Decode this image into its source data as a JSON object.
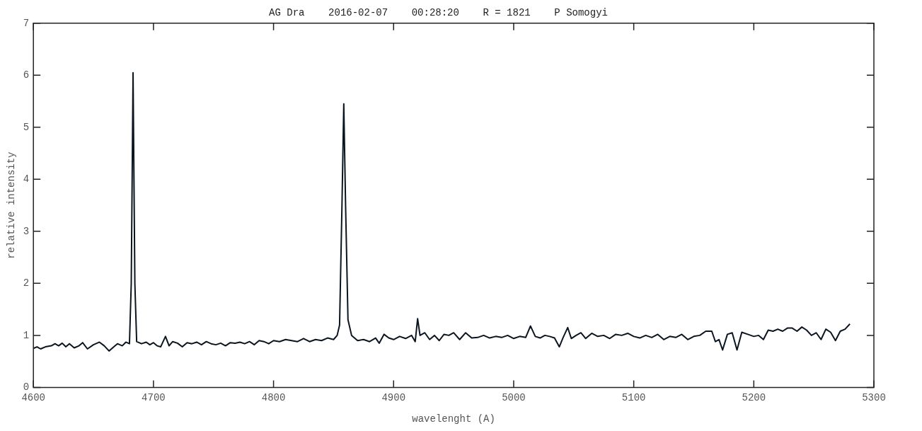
{
  "chart_data": {
    "type": "line",
    "title": "AG Dra    2016-02-07    00:28:20    R = 1821    P Somogyi",
    "xlabel": "wavelenght (A)",
    "ylabel": "relative intensity",
    "xlim": [
      4600,
      5300
    ],
    "xticks": [
      4600,
      4700,
      4800,
      4900,
      5000,
      5100,
      5200,
      5300
    ],
    "ylim": [
      0,
      7
    ],
    "yticks": [
      0,
      1,
      2,
      3,
      4,
      5,
      6,
      7
    ],
    "grid": false,
    "legend": false,
    "marker": "none",
    "line_style": "solid",
    "series": [
      {
        "color": "#0b1520",
        "x": [
          4600,
          4603,
          4606,
          4610,
          4615,
          4618,
          4621,
          4624,
          4627,
          4630,
          4634,
          4638,
          4641,
          4645,
          4650,
          4655,
          4659,
          4663,
          4667,
          4670,
          4674,
          4677,
          4680,
          4681.5,
          4683,
          4684.5,
          4686,
          4690,
          4694,
          4697,
          4700,
          4703,
          4706,
          4710,
          4713,
          4716,
          4720,
          4724,
          4728,
          4732,
          4736,
          4740,
          4744,
          4748,
          4752,
          4756,
          4760,
          4764,
          4768,
          4772,
          4776,
          4780,
          4784,
          4788,
          4792,
          4796,
          4800,
          4805,
          4810,
          4815,
          4820,
          4825,
          4830,
          4835,
          4840,
          4845,
          4850,
          4853,
          4855,
          4857,
          4858.5,
          4860,
          4862,
          4865,
          4870,
          4875,
          4880,
          4885,
          4888,
          4892,
          4896,
          4900,
          4905,
          4910,
          4915,
          4918,
          4920,
          4922,
          4926,
          4930,
          4934,
          4938,
          4942,
          4946,
          4950,
          4955,
          4960,
          4965,
          4970,
          4975,
          4980,
          4985,
          4990,
          4995,
          5000,
          5005,
          5010,
          5014,
          5018,
          5022,
          5026,
          5030,
          5034,
          5038,
          5041,
          5045,
          5048,
          5052,
          5056,
          5060,
          5065,
          5070,
          5075,
          5080,
          5085,
          5090,
          5095,
          5100,
          5105,
          5110,
          5115,
          5120,
          5125,
          5130,
          5135,
          5140,
          5145,
          5150,
          5155,
          5160,
          5165,
          5168,
          5171,
          5174,
          5178,
          5182,
          5186,
          5190,
          5195,
          5200,
          5204,
          5208,
          5212,
          5216,
          5220,
          5224,
          5228,
          5232,
          5236,
          5240,
          5244,
          5248,
          5252,
          5256,
          5260,
          5264,
          5268,
          5272,
          5276,
          5280
        ],
        "values": [
          0.75,
          0.78,
          0.74,
          0.78,
          0.8,
          0.84,
          0.8,
          0.85,
          0.78,
          0.84,
          0.76,
          0.8,
          0.86,
          0.74,
          0.82,
          0.87,
          0.8,
          0.7,
          0.78,
          0.84,
          0.8,
          0.87,
          0.84,
          2.0,
          6.05,
          2.0,
          0.88,
          0.84,
          0.87,
          0.82,
          0.86,
          0.8,
          0.78,
          0.98,
          0.8,
          0.88,
          0.85,
          0.78,
          0.86,
          0.84,
          0.87,
          0.82,
          0.88,
          0.84,
          0.82,
          0.85,
          0.8,
          0.86,
          0.85,
          0.87,
          0.84,
          0.88,
          0.82,
          0.9,
          0.88,
          0.84,
          0.9,
          0.88,
          0.92,
          0.9,
          0.88,
          0.94,
          0.88,
          0.92,
          0.9,
          0.95,
          0.92,
          1.0,
          1.2,
          3.5,
          5.45,
          3.5,
          1.3,
          1.0,
          0.9,
          0.92,
          0.88,
          0.95,
          0.85,
          1.02,
          0.95,
          0.92,
          0.98,
          0.94,
          1.0,
          0.88,
          1.32,
          1.0,
          1.05,
          0.92,
          1.0,
          0.9,
          1.02,
          1.0,
          1.05,
          0.92,
          1.05,
          0.95,
          0.96,
          1.0,
          0.95,
          0.98,
          0.96,
          1.0,
          0.94,
          0.98,
          0.96,
          1.18,
          0.98,
          0.95,
          1.0,
          0.98,
          0.95,
          0.78,
          0.95,
          1.15,
          0.94,
          1.0,
          1.05,
          0.94,
          1.04,
          0.98,
          1.0,
          0.94,
          1.02,
          1.0,
          1.04,
          0.98,
          0.95,
          1.0,
          0.96,
          1.02,
          0.92,
          0.98,
          0.96,
          1.02,
          0.92,
          0.98,
          1.0,
          1.08,
          1.08,
          0.88,
          0.92,
          0.72,
          1.02,
          1.05,
          0.72,
          1.06,
          1.02,
          0.98,
          1.0,
          0.92,
          1.1,
          1.08,
          1.12,
          1.08,
          1.14,
          1.14,
          1.08,
          1.16,
          1.1,
          1.0,
          1.05,
          0.92,
          1.12,
          1.06,
          0.9,
          1.08,
          1.12,
          1.22
        ]
      }
    ]
  }
}
